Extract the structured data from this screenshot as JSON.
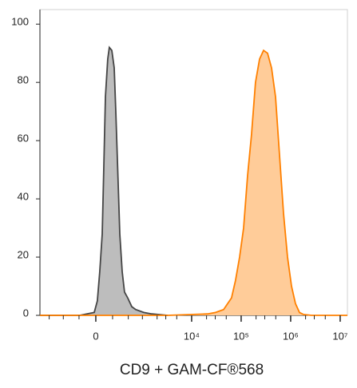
{
  "chart_data": {
    "type": "histogram-overlay",
    "x_label": "CD9 + GAM-CF®568",
    "xscale": "biexponential",
    "xlim": [
      -1550,
      14000000
    ],
    "ylim": [
      0,
      105
    ],
    "xticks": [
      0,
      {
        "value": 10000,
        "label": "10⁴"
      },
      {
        "value": 100000,
        "label": "10⁵"
      },
      {
        "value": 1000000,
        "label": "10⁶"
      },
      {
        "value": 10000000,
        "label": "10⁷"
      }
    ],
    "xminorticks": [
      -1000,
      -500,
      -200,
      200,
      500,
      1000,
      2000,
      3000,
      5000,
      20000,
      30000,
      50000,
      200000,
      300000,
      500000,
      2000000,
      3000000,
      5000000
    ],
    "yticks": [
      0,
      20,
      40,
      60,
      80,
      100
    ],
    "series": [
      {
        "color": "#444444",
        "fill": "#bdbdbd",
        "x": [
          -1550,
          -189,
          -17,
          17,
          43,
          70,
          88,
          107,
          136,
          156,
          189,
          224,
          248,
          288,
          316,
          362,
          411,
          485,
          596,
          724,
          1065,
          1552,
          3280
        ],
        "values": [
          0,
          0,
          1,
          5,
          15,
          28,
          50,
          75,
          88,
          92,
          91,
          85,
          70,
          45,
          28,
          15,
          8,
          6,
          3,
          2,
          1,
          0.5,
          0
        ]
      },
      {
        "color": "#ff8000",
        "fill": "#ffcc99",
        "x": [
          -1550,
          3280,
          21000,
          30400,
          44200,
          64000,
          77100,
          92900,
          112000,
          135000,
          162000,
          195000,
          235000,
          283000,
          341000,
          411000,
          495000,
          596000,
          717000,
          864000,
          1040000,
          1250000,
          1510000,
          1820000,
          2630000,
          14000000
        ],
        "values": [
          0,
          0,
          0.5,
          1,
          2,
          6,
          12,
          20,
          30,
          48,
          62,
          80,
          88,
          91,
          90,
          85,
          75,
          55,
          35,
          20,
          10,
          4,
          1,
          0.3,
          0,
          0
        ]
      }
    ]
  }
}
